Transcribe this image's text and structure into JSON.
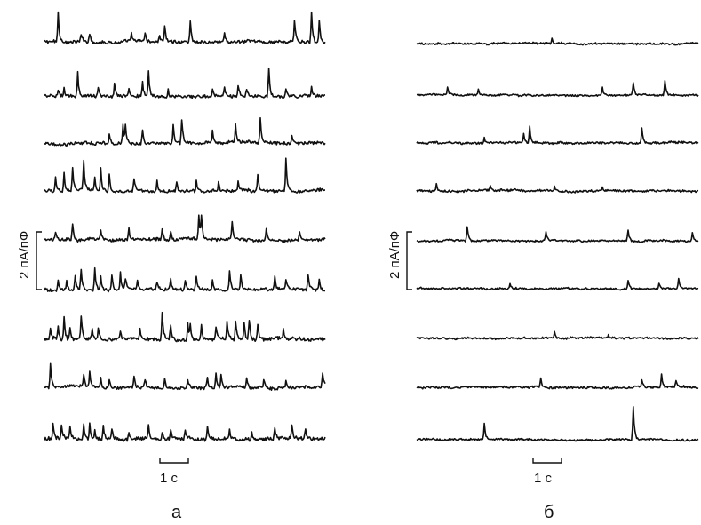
{
  "chart_data": [
    {
      "type": "line",
      "panel_label": "а",
      "x_scale_bar_label": "1 с",
      "y_scale_bar_label": "2 пА/пФ",
      "trace_count": 9,
      "traces": [
        {
          "noise": 0.05,
          "spikes": [
            [
              0.05,
              1.0
            ],
            [
              0.13,
              0.25
            ],
            [
              0.16,
              0.3
            ],
            [
              0.31,
              0.25
            ],
            [
              0.36,
              0.3
            ],
            [
              0.41,
              0.25
            ],
            [
              0.43,
              0.55
            ],
            [
              0.52,
              0.75
            ],
            [
              0.64,
              0.3
            ],
            [
              0.89,
              0.75
            ],
            [
              0.95,
              1.05
            ],
            [
              0.98,
              0.85
            ]
          ]
        },
        {
          "noise": 0.05,
          "spikes": [
            [
              0.05,
              0.25
            ],
            [
              0.07,
              0.3
            ],
            [
              0.12,
              0.85
            ],
            [
              0.19,
              0.35
            ],
            [
              0.25,
              0.45
            ],
            [
              0.3,
              0.25
            ],
            [
              0.35,
              0.45
            ],
            [
              0.37,
              0.85
            ],
            [
              0.44,
              0.25
            ],
            [
              0.6,
              0.25
            ],
            [
              0.64,
              0.3
            ],
            [
              0.69,
              0.35
            ],
            [
              0.72,
              0.25
            ],
            [
              0.8,
              1.0
            ],
            [
              0.86,
              0.3
            ],
            [
              0.95,
              0.3
            ]
          ]
        },
        {
          "noise": 0.05,
          "spikes": [
            [
              0.23,
              0.3
            ],
            [
              0.28,
              0.65
            ],
            [
              0.29,
              0.6
            ],
            [
              0.35,
              0.5
            ],
            [
              0.46,
              0.6
            ],
            [
              0.49,
              0.8
            ],
            [
              0.6,
              0.4
            ],
            [
              0.68,
              0.6
            ],
            [
              0.77,
              0.85
            ],
            [
              0.88,
              0.25
            ]
          ]
        },
        {
          "noise": 0.05,
          "spikes": [
            [
              0.04,
              0.45
            ],
            [
              0.07,
              0.6
            ],
            [
              0.1,
              0.75
            ],
            [
              0.14,
              1.0
            ],
            [
              0.18,
              0.5
            ],
            [
              0.2,
              0.8
            ],
            [
              0.23,
              0.55
            ],
            [
              0.32,
              0.45
            ],
            [
              0.4,
              0.35
            ],
            [
              0.47,
              0.3
            ],
            [
              0.54,
              0.35
            ],
            [
              0.62,
              0.3
            ],
            [
              0.69,
              0.3
            ],
            [
              0.76,
              0.6
            ],
            [
              0.86,
              1.2
            ]
          ]
        },
        {
          "noise": 0.05,
          "spikes": [
            [
              0.04,
              0.3
            ],
            [
              0.1,
              0.55
            ],
            [
              0.2,
              0.3
            ],
            [
              0.3,
              0.35
            ],
            [
              0.42,
              0.4
            ],
            [
              0.45,
              0.35
            ],
            [
              0.55,
              0.85
            ],
            [
              0.56,
              0.75
            ],
            [
              0.67,
              0.6
            ],
            [
              0.79,
              0.45
            ],
            [
              0.91,
              0.3
            ]
          ]
        },
        {
          "noise": 0.05,
          "spikes": [
            [
              0.05,
              0.3
            ],
            [
              0.08,
              0.35
            ],
            [
              0.11,
              0.45
            ],
            [
              0.13,
              0.75
            ],
            [
              0.18,
              0.8
            ],
            [
              0.2,
              0.45
            ],
            [
              0.24,
              0.55
            ],
            [
              0.27,
              0.6
            ],
            [
              0.29,
              0.4
            ],
            [
              0.33,
              0.35
            ],
            [
              0.4,
              0.3
            ],
            [
              0.45,
              0.35
            ],
            [
              0.5,
              0.3
            ],
            [
              0.54,
              0.45
            ],
            [
              0.6,
              0.4
            ],
            [
              0.66,
              0.65
            ],
            [
              0.7,
              0.5
            ],
            [
              0.82,
              0.45
            ],
            [
              0.86,
              0.35
            ],
            [
              0.94,
              0.5
            ],
            [
              0.98,
              0.4
            ]
          ]
        },
        {
          "noise": 0.06,
          "spikes": [
            [
              0.02,
              0.4
            ],
            [
              0.05,
              0.5
            ],
            [
              0.07,
              0.8
            ],
            [
              0.09,
              0.5
            ],
            [
              0.13,
              0.85
            ],
            [
              0.17,
              0.3
            ],
            [
              0.19,
              0.35
            ],
            [
              0.27,
              0.3
            ],
            [
              0.34,
              0.4
            ],
            [
              0.42,
              1.0
            ],
            [
              0.45,
              0.55
            ],
            [
              0.51,
              0.6
            ],
            [
              0.52,
              0.55
            ],
            [
              0.56,
              0.5
            ],
            [
              0.61,
              0.45
            ],
            [
              0.65,
              0.65
            ],
            [
              0.68,
              0.7
            ],
            [
              0.71,
              0.55
            ],
            [
              0.73,
              0.7
            ],
            [
              0.76,
              0.55
            ],
            [
              0.85,
              0.35
            ]
          ]
        },
        {
          "noise": 0.05,
          "spikes": [
            [
              0.02,
              0.85
            ],
            [
              0.14,
              0.45
            ],
            [
              0.16,
              0.6
            ],
            [
              0.2,
              0.35
            ],
            [
              0.23,
              0.3
            ],
            [
              0.32,
              0.35
            ],
            [
              0.36,
              0.3
            ],
            [
              0.43,
              0.3
            ],
            [
              0.51,
              0.3
            ],
            [
              0.58,
              0.4
            ],
            [
              0.61,
              0.55
            ],
            [
              0.63,
              0.45
            ],
            [
              0.72,
              0.3
            ],
            [
              0.78,
              0.3
            ],
            [
              0.86,
              0.25
            ],
            [
              0.99,
              0.5
            ]
          ]
        },
        {
          "noise": 0.06,
          "spikes": [
            [
              0.03,
              0.5
            ],
            [
              0.06,
              0.45
            ],
            [
              0.09,
              0.4
            ],
            [
              0.14,
              0.5
            ],
            [
              0.16,
              0.55
            ],
            [
              0.18,
              0.35
            ],
            [
              0.21,
              0.45
            ],
            [
              0.24,
              0.4
            ],
            [
              0.3,
              0.3
            ],
            [
              0.37,
              0.45
            ],
            [
              0.42,
              0.3
            ],
            [
              0.45,
              0.35
            ],
            [
              0.5,
              0.25
            ],
            [
              0.58,
              0.45
            ],
            [
              0.66,
              0.3
            ],
            [
              0.74,
              0.25
            ],
            [
              0.82,
              0.35
            ],
            [
              0.88,
              0.45
            ],
            [
              0.93,
              0.3
            ]
          ]
        }
      ]
    },
    {
      "type": "line",
      "panel_label": "б",
      "x_scale_bar_label": "1 с",
      "y_scale_bar_label": "2 пА/пФ",
      "trace_count": 9,
      "traces": [
        {
          "noise": 0.03,
          "spikes": [
            [
              0.48,
              0.15
            ]
          ]
        },
        {
          "noise": 0.03,
          "spikes": [
            [
              0.11,
              0.25
            ],
            [
              0.22,
              0.2
            ],
            [
              0.66,
              0.25
            ],
            [
              0.77,
              0.45
            ],
            [
              0.88,
              0.5
            ]
          ]
        },
        {
          "noise": 0.035,
          "spikes": [
            [
              0.24,
              0.2
            ],
            [
              0.38,
              0.35
            ],
            [
              0.4,
              0.55
            ],
            [
              0.8,
              0.55
            ]
          ]
        },
        {
          "noise": 0.035,
          "spikes": [
            [
              0.07,
              0.3
            ],
            [
              0.26,
              0.2
            ],
            [
              0.49,
              0.15
            ],
            [
              0.66,
              0.1
            ]
          ]
        },
        {
          "noise": 0.03,
          "spikes": [
            [
              0.18,
              0.5
            ],
            [
              0.46,
              0.35
            ],
            [
              0.75,
              0.35
            ],
            [
              0.98,
              0.3
            ]
          ]
        },
        {
          "noise": 0.03,
          "spikes": [
            [
              0.33,
              0.15
            ],
            [
              0.75,
              0.3
            ],
            [
              0.86,
              0.2
            ],
            [
              0.93,
              0.35
            ]
          ]
        },
        {
          "noise": 0.03,
          "spikes": [
            [
              0.49,
              0.25
            ],
            [
              0.68,
              0.12
            ]
          ]
        },
        {
          "noise": 0.035,
          "spikes": [
            [
              0.44,
              0.3
            ],
            [
              0.8,
              0.25
            ],
            [
              0.87,
              0.45
            ],
            [
              0.92,
              0.2
            ]
          ]
        },
        {
          "noise": 0.03,
          "spikes": [
            [
              0.24,
              0.55
            ],
            [
              0.77,
              1.15
            ]
          ]
        }
      ]
    }
  ]
}
